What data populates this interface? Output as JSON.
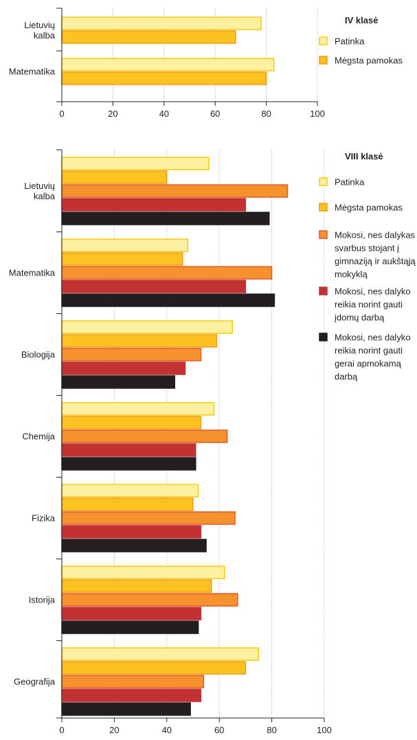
{
  "chart_data": [
    {
      "type": "bar",
      "orientation": "horizontal",
      "legend_title": "IV klasė",
      "categories": [
        [
          "Lietuvių",
          "kalba"
        ],
        [
          "Matematika"
        ]
      ],
      "xlim": [
        0,
        100
      ],
      "xticks": [
        0,
        20,
        40,
        60,
        80,
        100
      ],
      "grid": "vertical dotted",
      "legend_placement": "right",
      "series": [
        {
          "name": [
            "Patinka"
          ],
          "fill": "#fdf0a0",
          "stroke": "#f6c914",
          "values": [
            78,
            83
          ]
        },
        {
          "name": [
            "Mėgsta pamokas"
          ],
          "fill": "#fcc21f",
          "stroke": "#ec9c1c",
          "values": [
            68,
            80
          ]
        }
      ]
    },
    {
      "type": "bar",
      "orientation": "horizontal",
      "legend_title": "VIII klasė",
      "categories": [
        [
          "Lietuvių",
          "kalba"
        ],
        [
          "Matematika"
        ],
        [
          "Biologija"
        ],
        [
          "Chemija"
        ],
        [
          "Fizika"
        ],
        [
          "Istorija"
        ],
        [
          "Geografija"
        ]
      ],
      "xlim": [
        0,
        100
      ],
      "xticks": [
        0,
        20,
        40,
        60,
        80,
        100
      ],
      "grid": "vertical dotted",
      "legend_placement": "right",
      "series": [
        {
          "name": [
            "Patinka"
          ],
          "fill": "#fdf0a0",
          "stroke": "#f6c914",
          "values": [
            56,
            48,
            65,
            58,
            52,
            62,
            75
          ]
        },
        {
          "name": [
            "Mėgsta pamokas"
          ],
          "fill": "#fcc21f",
          "stroke": "#ec9c1c",
          "values": [
            40,
            46,
            59,
            53,
            50,
            57,
            70
          ]
        },
        {
          "name": [
            "Mokosi, nes dalykas",
            "svarbus stojant į",
            "gimnaziją ir aukštąją",
            "mokyklą"
          ],
          "fill": "#f5922d",
          "stroke": "#e2582a",
          "values": [
            86,
            80,
            53,
            63,
            66,
            67,
            54
          ]
        },
        {
          "name": [
            "Mokosi, nes dalyko",
            "reikia norint gauti",
            "įdomų darbą"
          ],
          "fill": "#c33233",
          "stroke": "#c33233",
          "values": [
            70,
            70,
            47,
            51,
            53,
            53,
            53
          ]
        },
        {
          "name": [
            "Mokosi, nes dalyko",
            "reikia norint gauti",
            "gerai apmokamą",
            "darbą"
          ],
          "fill": "#231f20",
          "stroke": "#231f20",
          "values": [
            79,
            81,
            43,
            51,
            55,
            52,
            49
          ]
        }
      ]
    }
  ]
}
